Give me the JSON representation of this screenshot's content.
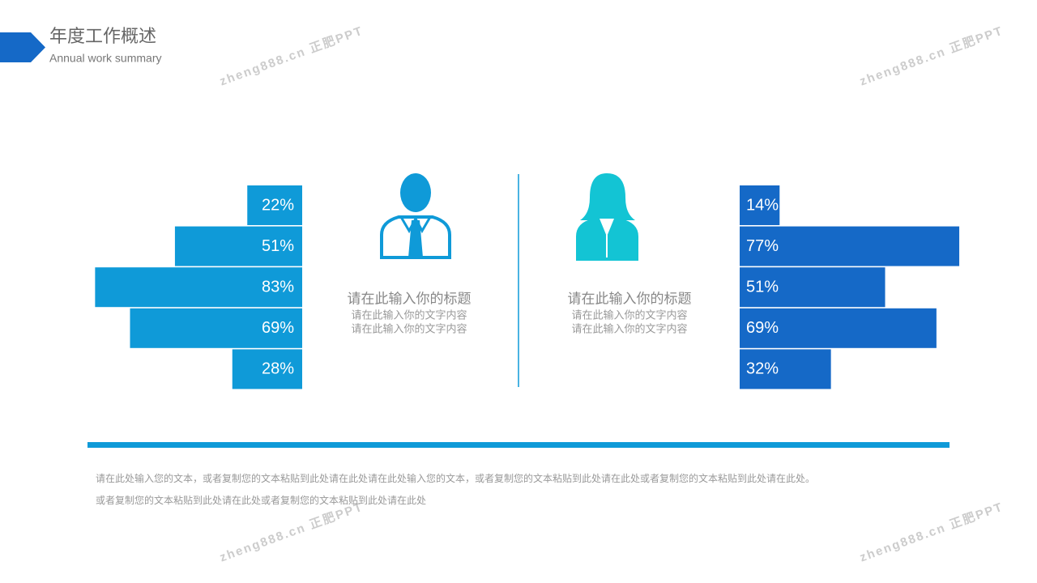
{
  "header": {
    "title": "年度工作概述",
    "subtitle": "Annual work summary"
  },
  "watermark": "zheng888.cn 正肥PPT",
  "chart_data": [
    {
      "type": "bar",
      "direction": "left",
      "color": "#0f9ad8",
      "values": [
        22,
        51,
        83,
        69,
        28
      ],
      "value_labels": [
        "22%",
        "51%",
        "83%",
        "69%",
        "28%"
      ]
    },
    {
      "type": "bar",
      "direction": "right",
      "color": "#1569c7",
      "values": [
        14,
        77,
        51,
        69,
        32
      ],
      "value_labels": [
        "14%",
        "77%",
        "51%",
        "69%",
        "32%"
      ]
    }
  ],
  "panels": [
    {
      "title": "请在此输入你的标题",
      "lines": [
        "请在此输入你的文字内容",
        "请在此输入你的文字内容"
      ]
    },
    {
      "title": "请在此输入你的标题",
      "lines": [
        "请在此输入你的文字内容",
        "请在此输入你的文字内容"
      ]
    }
  ],
  "footer": [
    "请在此处输入您的文本，或者复制您的文本粘贴到此处请在此处请在此处输入您的文本，或者复制您的文本粘贴到此处请在此处或者复制您的文本粘贴到此处请在此处。",
    "或者复制您的文本粘贴到此处请在此处或者复制您的文本粘贴到此处请在此处"
  ]
}
